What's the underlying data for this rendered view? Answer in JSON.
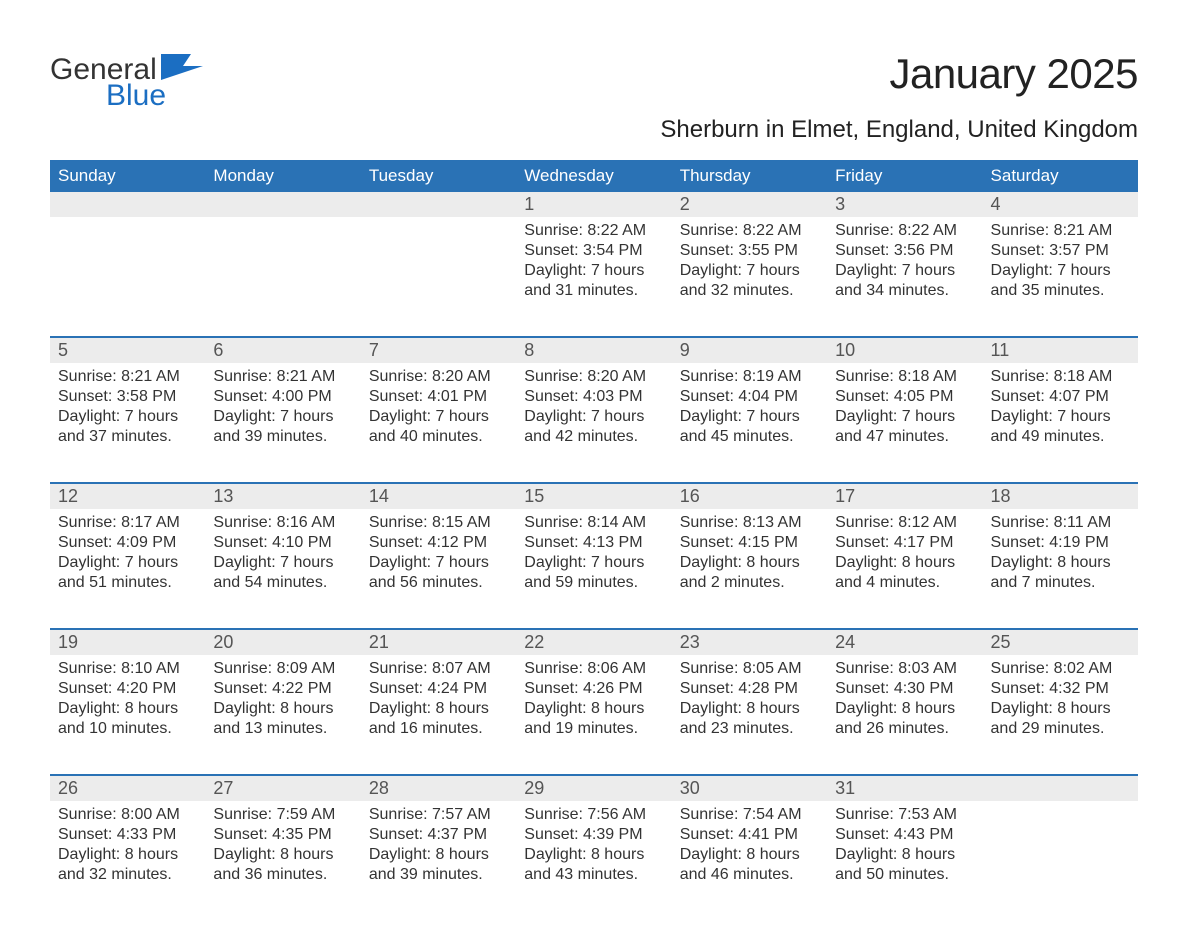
{
  "logo": {
    "text_general": "General",
    "text_blue": "Blue",
    "accent_color": "#1b6ec2"
  },
  "title": "January 2025",
  "location": "Sherburn in Elmet, England, United Kingdom",
  "colors": {
    "header_bg": "#2a72b5",
    "header_text": "#ffffff",
    "daynum_bg": "#ececec",
    "text": "#333333",
    "border": "#2a72b5"
  },
  "day_names": [
    "Sunday",
    "Monday",
    "Tuesday",
    "Wednesday",
    "Thursday",
    "Friday",
    "Saturday"
  ],
  "weeks": [
    [
      {
        "day": "",
        "sunrise": "",
        "sunset": "",
        "daylight": ""
      },
      {
        "day": "",
        "sunrise": "",
        "sunset": "",
        "daylight": ""
      },
      {
        "day": "",
        "sunrise": "",
        "sunset": "",
        "daylight": ""
      },
      {
        "day": "1",
        "sunrise": "Sunrise: 8:22 AM",
        "sunset": "Sunset: 3:54 PM",
        "daylight": "Daylight: 7 hours and 31 minutes."
      },
      {
        "day": "2",
        "sunrise": "Sunrise: 8:22 AM",
        "sunset": "Sunset: 3:55 PM",
        "daylight": "Daylight: 7 hours and 32 minutes."
      },
      {
        "day": "3",
        "sunrise": "Sunrise: 8:22 AM",
        "sunset": "Sunset: 3:56 PM",
        "daylight": "Daylight: 7 hours and 34 minutes."
      },
      {
        "day": "4",
        "sunrise": "Sunrise: 8:21 AM",
        "sunset": "Sunset: 3:57 PM",
        "daylight": "Daylight: 7 hours and 35 minutes."
      }
    ],
    [
      {
        "day": "5",
        "sunrise": "Sunrise: 8:21 AM",
        "sunset": "Sunset: 3:58 PM",
        "daylight": "Daylight: 7 hours and 37 minutes."
      },
      {
        "day": "6",
        "sunrise": "Sunrise: 8:21 AM",
        "sunset": "Sunset: 4:00 PM",
        "daylight": "Daylight: 7 hours and 39 minutes."
      },
      {
        "day": "7",
        "sunrise": "Sunrise: 8:20 AM",
        "sunset": "Sunset: 4:01 PM",
        "daylight": "Daylight: 7 hours and 40 minutes."
      },
      {
        "day": "8",
        "sunrise": "Sunrise: 8:20 AM",
        "sunset": "Sunset: 4:03 PM",
        "daylight": "Daylight: 7 hours and 42 minutes."
      },
      {
        "day": "9",
        "sunrise": "Sunrise: 8:19 AM",
        "sunset": "Sunset: 4:04 PM",
        "daylight": "Daylight: 7 hours and 45 minutes."
      },
      {
        "day": "10",
        "sunrise": "Sunrise: 8:18 AM",
        "sunset": "Sunset: 4:05 PM",
        "daylight": "Daylight: 7 hours and 47 minutes."
      },
      {
        "day": "11",
        "sunrise": "Sunrise: 8:18 AM",
        "sunset": "Sunset: 4:07 PM",
        "daylight": "Daylight: 7 hours and 49 minutes."
      }
    ],
    [
      {
        "day": "12",
        "sunrise": "Sunrise: 8:17 AM",
        "sunset": "Sunset: 4:09 PM",
        "daylight": "Daylight: 7 hours and 51 minutes."
      },
      {
        "day": "13",
        "sunrise": "Sunrise: 8:16 AM",
        "sunset": "Sunset: 4:10 PM",
        "daylight": "Daylight: 7 hours and 54 minutes."
      },
      {
        "day": "14",
        "sunrise": "Sunrise: 8:15 AM",
        "sunset": "Sunset: 4:12 PM",
        "daylight": "Daylight: 7 hours and 56 minutes."
      },
      {
        "day": "15",
        "sunrise": "Sunrise: 8:14 AM",
        "sunset": "Sunset: 4:13 PM",
        "daylight": "Daylight: 7 hours and 59 minutes."
      },
      {
        "day": "16",
        "sunrise": "Sunrise: 8:13 AM",
        "sunset": "Sunset: 4:15 PM",
        "daylight": "Daylight: 8 hours and 2 minutes."
      },
      {
        "day": "17",
        "sunrise": "Sunrise: 8:12 AM",
        "sunset": "Sunset: 4:17 PM",
        "daylight": "Daylight: 8 hours and 4 minutes."
      },
      {
        "day": "18",
        "sunrise": "Sunrise: 8:11 AM",
        "sunset": "Sunset: 4:19 PM",
        "daylight": "Daylight: 8 hours and 7 minutes."
      }
    ],
    [
      {
        "day": "19",
        "sunrise": "Sunrise: 8:10 AM",
        "sunset": "Sunset: 4:20 PM",
        "daylight": "Daylight: 8 hours and 10 minutes."
      },
      {
        "day": "20",
        "sunrise": "Sunrise: 8:09 AM",
        "sunset": "Sunset: 4:22 PM",
        "daylight": "Daylight: 8 hours and 13 minutes."
      },
      {
        "day": "21",
        "sunrise": "Sunrise: 8:07 AM",
        "sunset": "Sunset: 4:24 PM",
        "daylight": "Daylight: 8 hours and 16 minutes."
      },
      {
        "day": "22",
        "sunrise": "Sunrise: 8:06 AM",
        "sunset": "Sunset: 4:26 PM",
        "daylight": "Daylight: 8 hours and 19 minutes."
      },
      {
        "day": "23",
        "sunrise": "Sunrise: 8:05 AM",
        "sunset": "Sunset: 4:28 PM",
        "daylight": "Daylight: 8 hours and 23 minutes."
      },
      {
        "day": "24",
        "sunrise": "Sunrise: 8:03 AM",
        "sunset": "Sunset: 4:30 PM",
        "daylight": "Daylight: 8 hours and 26 minutes."
      },
      {
        "day": "25",
        "sunrise": "Sunrise: 8:02 AM",
        "sunset": "Sunset: 4:32 PM",
        "daylight": "Daylight: 8 hours and 29 minutes."
      }
    ],
    [
      {
        "day": "26",
        "sunrise": "Sunrise: 8:00 AM",
        "sunset": "Sunset: 4:33 PM",
        "daylight": "Daylight: 8 hours and 32 minutes."
      },
      {
        "day": "27",
        "sunrise": "Sunrise: 7:59 AM",
        "sunset": "Sunset: 4:35 PM",
        "daylight": "Daylight: 8 hours and 36 minutes."
      },
      {
        "day": "28",
        "sunrise": "Sunrise: 7:57 AM",
        "sunset": "Sunset: 4:37 PM",
        "daylight": "Daylight: 8 hours and 39 minutes."
      },
      {
        "day": "29",
        "sunrise": "Sunrise: 7:56 AM",
        "sunset": "Sunset: 4:39 PM",
        "daylight": "Daylight: 8 hours and 43 minutes."
      },
      {
        "day": "30",
        "sunrise": "Sunrise: 7:54 AM",
        "sunset": "Sunset: 4:41 PM",
        "daylight": "Daylight: 8 hours and 46 minutes."
      },
      {
        "day": "31",
        "sunrise": "Sunrise: 7:53 AM",
        "sunset": "Sunset: 4:43 PM",
        "daylight": "Daylight: 8 hours and 50 minutes."
      },
      {
        "day": "",
        "sunrise": "",
        "sunset": "",
        "daylight": ""
      }
    ]
  ]
}
